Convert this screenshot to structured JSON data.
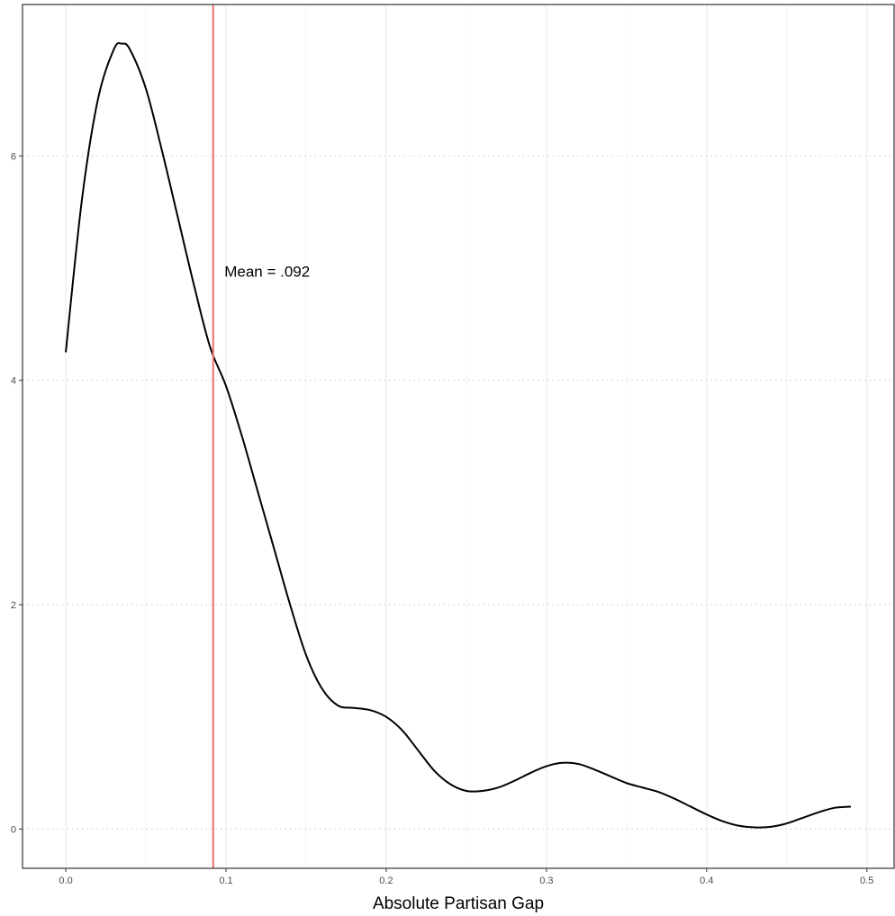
{
  "chart_data": {
    "type": "line",
    "title": "",
    "xlabel": "Absolute Partisan Gap",
    "ylabel": "",
    "xlim": [
      -0.027,
      0.517
    ],
    "ylim": [
      -0.35,
      7.35
    ],
    "x_ticks": [
      0.0,
      0.1,
      0.2,
      0.3,
      0.4,
      0.5
    ],
    "x_tick_labels": [
      "0.0",
      "0.1",
      "0.2",
      "0.3",
      "0.4",
      "0.5"
    ],
    "y_ticks": [
      0,
      2,
      4,
      6
    ],
    "y_tick_labels": [
      "0",
      "2",
      "4",
      "6"
    ],
    "grid": {
      "vertical": "solid-light",
      "horizontal": "dotted"
    },
    "series": [
      {
        "line_color": "#000000",
        "x": [
          0.0,
          0.01,
          0.02,
          0.03,
          0.035,
          0.04,
          0.05,
          0.06,
          0.07,
          0.08,
          0.09,
          0.1,
          0.11,
          0.12,
          0.13,
          0.14,
          0.15,
          0.16,
          0.17,
          0.18,
          0.19,
          0.2,
          0.21,
          0.22,
          0.23,
          0.24,
          0.25,
          0.26,
          0.27,
          0.28,
          0.29,
          0.3,
          0.31,
          0.32,
          0.33,
          0.34,
          0.35,
          0.36,
          0.37,
          0.38,
          0.39,
          0.4,
          0.41,
          0.42,
          0.43,
          0.44,
          0.45,
          0.46,
          0.47,
          0.48,
          0.49
        ],
        "y": [
          4.25,
          5.6,
          6.5,
          6.95,
          7.0,
          6.95,
          6.6,
          6.05,
          5.45,
          4.85,
          4.3,
          3.95,
          3.5,
          3.0,
          2.5,
          2.0,
          1.55,
          1.25,
          1.1,
          1.08,
          1.06,
          1.0,
          0.88,
          0.7,
          0.52,
          0.4,
          0.34,
          0.34,
          0.37,
          0.43,
          0.5,
          0.56,
          0.59,
          0.58,
          0.53,
          0.47,
          0.41,
          0.37,
          0.33,
          0.27,
          0.2,
          0.13,
          0.07,
          0.03,
          0.015,
          0.02,
          0.05,
          0.1,
          0.15,
          0.19,
          0.2
        ]
      }
    ],
    "reference_line": {
      "x": 0.092,
      "color": "#e8726b"
    },
    "annotations": [
      {
        "text": "Mean = .092",
        "x": 0.099,
        "y": 4.97
      }
    ]
  }
}
